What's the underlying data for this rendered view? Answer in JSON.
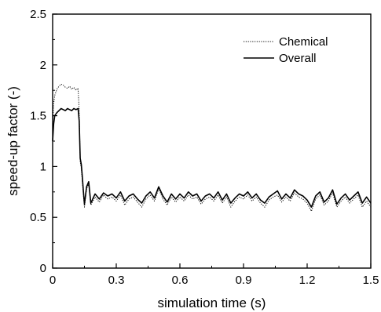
{
  "chart_data": {
    "type": "line",
    "title": "",
    "xlabel": "simulation time (s)",
    "ylabel": "speed-up factor (-)",
    "xlim": [
      0,
      1.5
    ],
    "ylim": [
      0,
      2.5
    ],
    "xticks": [
      "0",
      "0.3",
      "0.6",
      "0.9",
      "1.2",
      "1.5"
    ],
    "yticks": [
      "0",
      "0.5",
      "1",
      "1.5",
      "2",
      "2.5"
    ],
    "grid": false,
    "legend_position": "top-right",
    "series": [
      {
        "name": "Chemical",
        "style": "dotted",
        "color": "#000000",
        "x": [
          0,
          0.005,
          0.01,
          0.02,
          0.03,
          0.04,
          0.05,
          0.06,
          0.07,
          0.08,
          0.09,
          0.1,
          0.11,
          0.12,
          0.125,
          0.13,
          0.135,
          0.14,
          0.145,
          0.15,
          0.16,
          0.17,
          0.18,
          0.2,
          0.22,
          0.24,
          0.26,
          0.28,
          0.3,
          0.32,
          0.34,
          0.36,
          0.38,
          0.4,
          0.42,
          0.44,
          0.46,
          0.48,
          0.5,
          0.52,
          0.54,
          0.56,
          0.58,
          0.6,
          0.62,
          0.64,
          0.66,
          0.68,
          0.7,
          0.72,
          0.74,
          0.76,
          0.78,
          0.8,
          0.82,
          0.84,
          0.86,
          0.88,
          0.9,
          0.92,
          0.94,
          0.96,
          0.98,
          1.0,
          1.02,
          1.04,
          1.06,
          1.08,
          1.1,
          1.12,
          1.14,
          1.16,
          1.18,
          1.2,
          1.22,
          1.24,
          1.26,
          1.28,
          1.3,
          1.32,
          1.34,
          1.36,
          1.38,
          1.4,
          1.42,
          1.44,
          1.46,
          1.48,
          1.5
        ],
        "values": [
          1.42,
          1.62,
          1.7,
          1.76,
          1.79,
          1.81,
          1.8,
          1.78,
          1.77,
          1.79,
          1.76,
          1.78,
          1.75,
          1.77,
          1.55,
          1.05,
          0.98,
          0.85,
          0.72,
          0.6,
          0.78,
          0.83,
          0.62,
          0.7,
          0.65,
          0.72,
          0.68,
          0.7,
          0.66,
          0.72,
          0.62,
          0.68,
          0.7,
          0.65,
          0.6,
          0.68,
          0.72,
          0.66,
          0.78,
          0.68,
          0.62,
          0.7,
          0.65,
          0.7,
          0.66,
          0.72,
          0.68,
          0.7,
          0.63,
          0.68,
          0.7,
          0.66,
          0.72,
          0.64,
          0.7,
          0.6,
          0.66,
          0.7,
          0.68,
          0.72,
          0.66,
          0.7,
          0.64,
          0.6,
          0.67,
          0.7,
          0.72,
          0.65,
          0.7,
          0.66,
          0.74,
          0.7,
          0.68,
          0.64,
          0.56,
          0.68,
          0.72,
          0.62,
          0.66,
          0.74,
          0.6,
          0.66,
          0.7,
          0.64,
          0.68,
          0.72,
          0.6,
          0.66,
          0.6
        ]
      },
      {
        "name": "Overall",
        "style": "solid",
        "color": "#000000",
        "x": [
          0,
          0.005,
          0.01,
          0.02,
          0.03,
          0.04,
          0.05,
          0.06,
          0.07,
          0.08,
          0.09,
          0.1,
          0.11,
          0.12,
          0.125,
          0.13,
          0.135,
          0.14,
          0.145,
          0.15,
          0.16,
          0.17,
          0.18,
          0.2,
          0.22,
          0.24,
          0.26,
          0.28,
          0.3,
          0.32,
          0.34,
          0.36,
          0.38,
          0.4,
          0.42,
          0.44,
          0.46,
          0.48,
          0.5,
          0.52,
          0.54,
          0.56,
          0.58,
          0.6,
          0.62,
          0.64,
          0.66,
          0.68,
          0.7,
          0.72,
          0.74,
          0.76,
          0.78,
          0.8,
          0.82,
          0.84,
          0.86,
          0.88,
          0.9,
          0.92,
          0.94,
          0.96,
          0.98,
          1.0,
          1.02,
          1.04,
          1.06,
          1.08,
          1.1,
          1.12,
          1.14,
          1.16,
          1.18,
          1.2,
          1.22,
          1.24,
          1.26,
          1.28,
          1.3,
          1.32,
          1.34,
          1.36,
          1.38,
          1.4,
          1.42,
          1.44,
          1.46,
          1.48,
          1.5
        ],
        "values": [
          1.25,
          1.42,
          1.5,
          1.53,
          1.55,
          1.57,
          1.56,
          1.55,
          1.57,
          1.56,
          1.55,
          1.57,
          1.56,
          1.57,
          1.45,
          1.08,
          1.02,
          0.9,
          0.75,
          0.63,
          0.8,
          0.85,
          0.64,
          0.73,
          0.68,
          0.74,
          0.71,
          0.73,
          0.69,
          0.75,
          0.66,
          0.71,
          0.73,
          0.68,
          0.64,
          0.71,
          0.75,
          0.69,
          0.8,
          0.71,
          0.65,
          0.73,
          0.68,
          0.73,
          0.69,
          0.75,
          0.71,
          0.73,
          0.66,
          0.71,
          0.73,
          0.69,
          0.75,
          0.67,
          0.73,
          0.64,
          0.69,
          0.73,
          0.71,
          0.75,
          0.69,
          0.73,
          0.67,
          0.64,
          0.7,
          0.73,
          0.76,
          0.68,
          0.73,
          0.69,
          0.77,
          0.73,
          0.71,
          0.67,
          0.6,
          0.71,
          0.75,
          0.65,
          0.69,
          0.77,
          0.63,
          0.69,
          0.73,
          0.67,
          0.71,
          0.75,
          0.64,
          0.7,
          0.64
        ]
      }
    ]
  }
}
